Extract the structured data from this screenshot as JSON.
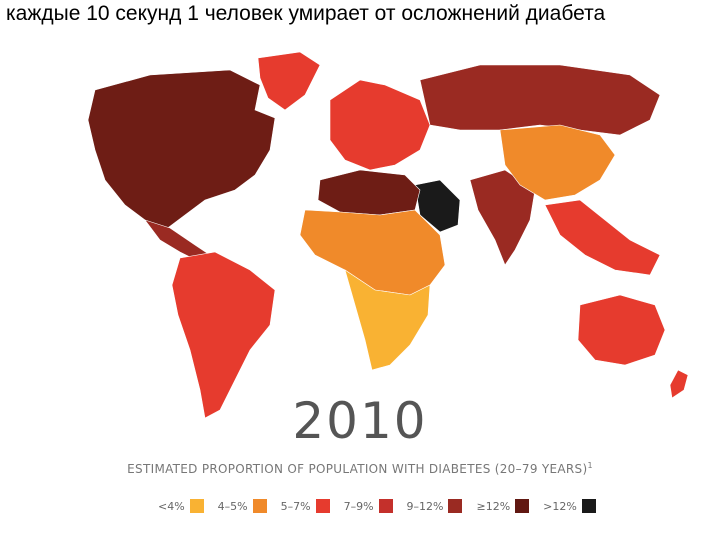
{
  "title": "каждые 10 секунд  1 человек умирает от осложнений диабета",
  "map": {
    "year": "2010",
    "subtitle": "ESTIMATED PROPORTION OF POPULATION WITH DIABETES (20–79 YEARS)",
    "footnote_mark": "1",
    "legend": [
      {
        "label": "<4%",
        "color": "#f9b233"
      },
      {
        "label": "4–5%",
        "color": "#f08a2a"
      },
      {
        "label": "5–7%",
        "color": "#e63b2e"
      },
      {
        "label": "7–9%",
        "color": "#c4302b"
      },
      {
        "label": "9–12%",
        "color": "#9a2a22"
      },
      {
        "label": "≥12%",
        "color": "#611812"
      }
    ],
    "extra_legend": {
      "label": ">12%",
      "color": "#1a1a1a"
    },
    "colors": {
      "north_america": "#6e1d15",
      "greenland": "#e63b2e",
      "central_america": "#9a2a22",
      "south_america": "#e63b2e",
      "europe": "#e63b2e",
      "russia": "#9a2a22",
      "middle_east": "#1a1a1a",
      "north_africa": "#6e1d15",
      "africa": "#f08a2a",
      "southern_africa": "#f9b233",
      "india": "#9a2a22",
      "china": "#f08a2a",
      "southeast_asia": "#e63b2e",
      "australia": "#e63b2e"
    }
  }
}
